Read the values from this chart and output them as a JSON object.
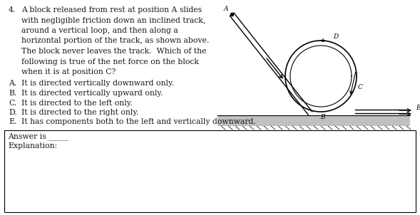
{
  "question_number": "4.",
  "question_text_lines": [
    "A block released from rest at position A slides",
    "with negligible friction down an inclined track,",
    "around a vertical loop, and then along a",
    "horizontal portion of the track, as shown above.",
    "The block never leaves the track.  Which of the",
    "following is true of the net force on the block",
    "when it is at position C?"
  ],
  "choices": [
    [
      "A.",
      "It is directed vertically downward only."
    ],
    [
      "B.",
      "It is directed vertically upward only."
    ],
    [
      "C.",
      "It is directed to the left only."
    ],
    [
      "D.",
      "It is directed to the right only."
    ],
    [
      "E.",
      "It has components both to the left and vertically downward."
    ]
  ],
  "answer_label": "Answer is ",
  "answer_underline": "_____",
  "explanation_label": "Explanation:",
  "bg_color": "#ffffff",
  "text_color": "#1a1a1a",
  "box_color": "#000000"
}
